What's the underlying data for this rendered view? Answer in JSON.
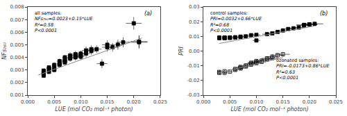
{
  "chart_data": [
    {
      "type": "scatter",
      "title": "(a)",
      "xlabel": "LUE (mol CO₂ mol⁻¹ photon)",
      "ylabel": "NFs₇₆₀",
      "xlim": [
        0.0,
        0.025
      ],
      "ylim": [
        0.001,
        0.008
      ],
      "xticks": [
        {
          "value": 0.0,
          "label": "0.000"
        },
        0.005,
        {
          "value": 0.01,
          "label": "0.010"
        },
        0.015,
        {
          "value": 0.02,
          "label": "0.020"
        },
        0.025
      ],
      "yticks": [
        0.001,
        0.002,
        0.003,
        0.004,
        0.005,
        0.006,
        0.007,
        0.008
      ],
      "grid": false,
      "annotations": [
        [
          "all samples:",
          "NFs₇₆₀=0.0023+0.15*LUE",
          "R²=0.58",
          "P<0.0001"
        ]
      ],
      "series": [
        {
          "type": "scatter",
          "marker": "square",
          "color": "black",
          "x": [
            0.003,
            0.003,
            0.003,
            0.003,
            0.003,
            0.003,
            0.004,
            0.004,
            0.004,
            0.004,
            0.005,
            0.005,
            0.005,
            0.005,
            0.006,
            0.006,
            0.006,
            0.007,
            0.007,
            0.007,
            0.007,
            0.008,
            0.008,
            0.008,
            0.009,
            0.009,
            0.009,
            0.01,
            0.01,
            0.01,
            0.011,
            0.011,
            0.012,
            0.012,
            0.013,
            0.014,
            0.015,
            0.015,
            0.016,
            0.017,
            0.018,
            0.02,
            0.021,
            0.021
          ],
          "values": [
            0.00275,
            0.0028,
            0.00255,
            0.00295,
            0.00285,
            0.00265,
            0.00305,
            0.0032,
            0.00285,
            0.0031,
            0.00325,
            0.0034,
            0.003,
            0.0031,
            0.0035,
            0.0037,
            0.0034,
            0.0038,
            0.0036,
            0.004,
            0.0037,
            0.004,
            0.00415,
            0.0039,
            0.004,
            0.00425,
            0.0041,
            0.00405,
            0.0043,
            0.00415,
            0.0043,
            0.00455,
            0.0045,
            0.00465,
            0.00465,
            0.0035,
            0.0048,
            0.005,
            0.0048,
            0.005,
            0.0052,
            0.0067,
            0.0052,
            0.00525
          ],
          "xerr": [
            0.0003,
            0.0003,
            0.0003,
            0.0003,
            0.0003,
            0.0003,
            0.0004,
            0.0004,
            0.0004,
            0.0004,
            0.0004,
            0.0004,
            0.0004,
            0.0004,
            0.0005,
            0.0005,
            0.0005,
            0.0005,
            0.0005,
            0.0005,
            0.0005,
            0.0006,
            0.0006,
            0.0006,
            0.0006,
            0.0006,
            0.0006,
            0.0007,
            0.0007,
            0.0007,
            0.0008,
            0.0008,
            0.0009,
            0.0009,
            0.0009,
            0.001,
            0.001,
            0.001,
            0.0011,
            0.0012,
            0.0013,
            0.0015,
            0.0016,
            0.0016
          ],
          "yerr": [
            0.00015,
            0.00015,
            0.00015,
            0.00015,
            0.00015,
            0.00015,
            0.00015,
            0.00015,
            0.00015,
            0.00015,
            0.0002,
            0.0002,
            0.0002,
            0.0002,
            0.0002,
            0.0002,
            0.0002,
            0.0002,
            0.0002,
            0.0002,
            0.0002,
            0.00025,
            0.00025,
            0.00025,
            0.00025,
            0.00025,
            0.00025,
            0.00025,
            0.00025,
            0.00025,
            0.0003,
            0.0003,
            0.0003,
            0.0003,
            0.0003,
            0.00035,
            0.00035,
            0.00035,
            0.00035,
            0.0004,
            0.0004,
            0.0005,
            0.0005,
            0.0005
          ]
        },
        {
          "type": "line",
          "color": "#888888",
          "x": [
            0.002,
            0.0215
          ],
          "values": [
            0.0026,
            0.005525
          ]
        }
      ]
    },
    {
      "type": "scatter",
      "title": "(b)",
      "xlabel": "LUE (mol CO₂ mol⁻¹ photon)",
      "ylabel": "PRI",
      "xlim": [
        0.0,
        0.025
      ],
      "ylim": [
        -0.03,
        0.03
      ],
      "xticks": [
        {
          "value": 0.0,
          "label": "0.000"
        },
        0.005,
        {
          "value": 0.01,
          "label": "0.010"
        },
        0.015,
        {
          "value": 0.02,
          "label": "0.020"
        },
        0.025
      ],
      "yticks": [
        -0.03,
        -0.02,
        -0.01,
        {
          "value": 0.0,
          "label": "0.00"
        },
        0.01,
        0.02,
        0.03
      ],
      "grid": false,
      "annotations": [
        [
          "control samples:",
          "PRI=0.0032+0.66*LUE",
          "R²=0.68",
          "P<0.0001"
        ],
        [
          "ozonated samples:",
          "PRI=-0.0173+0.86*LUE",
          "R²=0.63",
          "P<0.0001"
        ]
      ],
      "series": [
        {
          "type": "scatter",
          "marker": "square",
          "color": "black",
          "x": [
            0.003,
            0.003,
            0.003,
            0.004,
            0.004,
            0.004,
            0.004,
            0.004,
            0.005,
            0.005,
            0.005,
            0.006,
            0.006,
            0.007,
            0.007,
            0.008,
            0.009,
            0.01,
            0.01,
            0.012,
            0.013,
            0.014,
            0.015,
            0.016,
            0.017,
            0.018,
            0.019,
            0.019,
            0.02,
            0.02,
            0.021
          ],
          "values": [
            0.0088,
            0.009,
            0.0092,
            0.0088,
            0.009,
            0.0092,
            0.009,
            0.0088,
            0.009,
            0.0092,
            0.009,
            0.0094,
            0.0092,
            0.0095,
            0.0098,
            0.01,
            0.0108,
            0.011,
            0.0072,
            0.0115,
            0.012,
            0.013,
            0.014,
            0.015,
            0.0155,
            0.016,
            0.0175,
            0.0178,
            0.018,
            0.0182,
            0.0185
          ],
          "xerr": [
            0.0003,
            0.0003,
            0.0003,
            0.0004,
            0.0004,
            0.0004,
            0.0004,
            0.0004,
            0.0004,
            0.0004,
            0.0004,
            0.0005,
            0.0005,
            0.0005,
            0.0005,
            0.0006,
            0.0007,
            0.0007,
            0.0007,
            0.0009,
            0.001,
            0.001,
            0.0011,
            0.0012,
            0.0013,
            0.0013,
            0.0014,
            0.0015,
            0.0015,
            0.0015,
            0.0016
          ],
          "yerr": [
            0.0005,
            0.0005,
            0.0005,
            0.0005,
            0.0005,
            0.0005,
            0.0005,
            0.0005,
            0.0006,
            0.0006,
            0.0006,
            0.0006,
            0.0006,
            0.0007,
            0.0007,
            0.0007,
            0.0008,
            0.0008,
            0.0008,
            0.0009,
            0.001,
            0.001,
            0.0011,
            0.0011,
            0.0012,
            0.0012,
            0.0013,
            0.0013,
            0.0014,
            0.0014,
            0.0014
          ]
        },
        {
          "type": "scatter",
          "marker": "open square",
          "color": "black",
          "x": [
            0.003,
            0.003,
            0.004,
            0.004,
            0.005,
            0.006,
            0.006,
            0.007,
            0.007,
            0.007,
            0.008,
            0.008,
            0.009,
            0.009,
            0.009,
            0.01,
            0.01,
            0.01,
            0.011,
            0.011,
            0.012,
            0.012,
            0.013,
            0.013,
            0.014,
            0.015
          ],
          "values": [
            -0.0148,
            -0.0142,
            -0.0148,
            -0.0138,
            -0.014,
            -0.0128,
            -0.0122,
            -0.0118,
            -0.0113,
            -0.0108,
            -0.0105,
            -0.0098,
            -0.0092,
            -0.0085,
            -0.008,
            -0.0082,
            -0.0075,
            -0.0068,
            -0.0073,
            -0.0065,
            -0.0058,
            -0.005,
            -0.0048,
            -0.0038,
            -0.0028,
            -0.0022
          ],
          "xerr": [
            0.0004,
            0.0004,
            0.0004,
            0.0004,
            0.0005,
            0.0005,
            0.0005,
            0.0006,
            0.0006,
            0.0006,
            0.0006,
            0.0006,
            0.0007,
            0.0007,
            0.0007,
            0.0008,
            0.0008,
            0.0008,
            0.0009,
            0.0009,
            0.001,
            0.001,
            0.0011,
            0.0011,
            0.0012,
            0.0013
          ],
          "yerr": [
            0.0012,
            0.0012,
            0.0012,
            0.0012,
            0.0012,
            0.0012,
            0.0012,
            0.0012,
            0.0012,
            0.0012,
            0.0013,
            0.0013,
            0.0013,
            0.0013,
            0.0013,
            0.0013,
            0.0013,
            0.0013,
            0.0013,
            0.0013,
            0.0014,
            0.0014,
            0.0014,
            0.0014,
            0.0015,
            0.0015
          ]
        },
        {
          "type": "line",
          "color": "#888888",
          "x": [
            0.003,
            0.021
          ],
          "values": [
            0.00518,
            0.01706
          ]
        },
        {
          "type": "line",
          "color": "#888888",
          "x": [
            0.003,
            0.015
          ],
          "values": [
            -0.01472,
            -0.0044
          ]
        }
      ]
    }
  ]
}
